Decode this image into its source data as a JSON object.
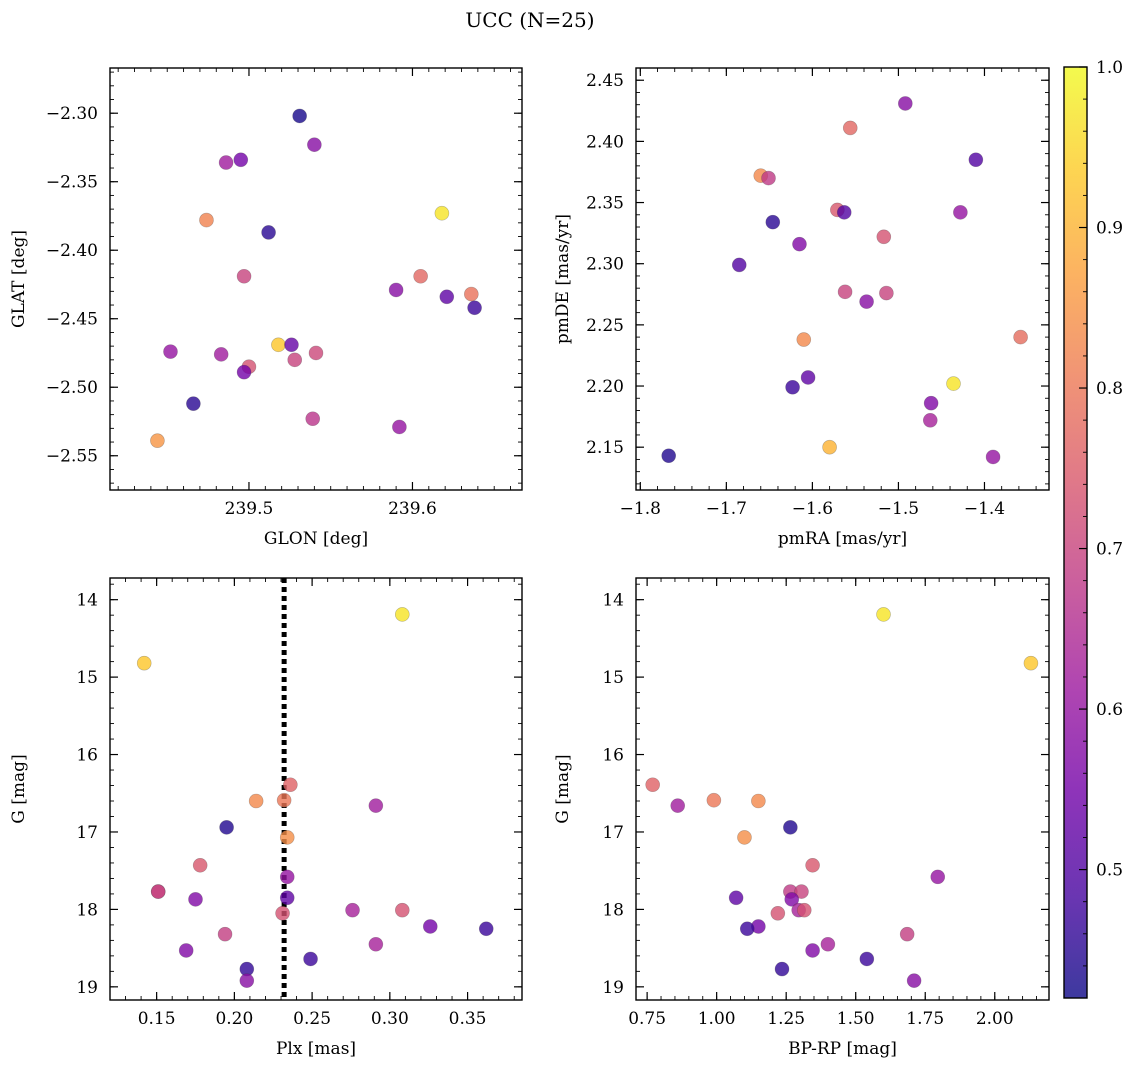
{
  "title": "UCC (N=25)",
  "colorbar": {
    "range": [
      0.42,
      1.0
    ],
    "ticks": [
      0.5,
      0.6,
      0.7,
      0.8,
      0.9,
      1.0
    ],
    "tick_labels": [
      "0.5",
      "0.6",
      "0.7",
      "0.8",
      "0.9",
      "1.0"
    ],
    "colormap": "plasma",
    "colormap_stops": [
      "#0d0887",
      "#46039f",
      "#7201a8",
      "#9c179e",
      "#bd3786",
      "#d8576b",
      "#ed7953",
      "#fb9f3a",
      "#fdca26",
      "#f0f921"
    ],
    "alpha": 0.8
  },
  "chart_data": [
    {
      "type": "scatter",
      "xlabel": "GLON [deg]",
      "ylabel": "GLAT [deg]",
      "xlim": [
        239.415,
        239.667
      ],
      "ylim": [
        -2.575,
        -2.267
      ],
      "xticks": [
        239.5,
        239.6
      ],
      "xtick_labels": [
        "239.5",
        "239.6"
      ],
      "yticks": [
        -2.3,
        -2.35,
        -2.4,
        -2.45,
        -2.5,
        -2.55
      ],
      "ytick_labels": [
        "−2.30",
        "−2.35",
        "−2.40",
        "−2.45",
        "−2.50",
        "−2.55"
      ],
      "x_minor_step": 0.01,
      "y_minor_step": 0.01,
      "invert_y": false,
      "points": [
        {
          "x": 239.531,
          "y": -2.302,
          "c": 0.43
        },
        {
          "x": 239.54,
          "y": -2.323,
          "c": 0.58
        },
        {
          "x": 239.486,
          "y": -2.336,
          "c": 0.62
        },
        {
          "x": 239.495,
          "y": -2.334,
          "c": 0.55
        },
        {
          "x": 239.618,
          "y": -2.373,
          "c": 0.97
        },
        {
          "x": 239.474,
          "y": -2.378,
          "c": 0.82
        },
        {
          "x": 239.512,
          "y": -2.387,
          "c": 0.45
        },
        {
          "x": 239.497,
          "y": -2.419,
          "c": 0.7
        },
        {
          "x": 239.605,
          "y": -2.419,
          "c": 0.77
        },
        {
          "x": 239.59,
          "y": -2.429,
          "c": 0.58
        },
        {
          "x": 239.621,
          "y": -2.434,
          "c": 0.52
        },
        {
          "x": 239.636,
          "y": -2.432,
          "c": 0.79
        },
        {
          "x": 239.638,
          "y": -2.442,
          "c": 0.47
        },
        {
          "x": 239.518,
          "y": -2.469,
          "c": 0.93
        },
        {
          "x": 239.526,
          "y": -2.469,
          "c": 0.53
        },
        {
          "x": 239.452,
          "y": -2.474,
          "c": 0.6
        },
        {
          "x": 239.483,
          "y": -2.476,
          "c": 0.62
        },
        {
          "x": 239.541,
          "y": -2.475,
          "c": 0.71
        },
        {
          "x": 239.528,
          "y": -2.48,
          "c": 0.7
        },
        {
          "x": 239.5,
          "y": -2.485,
          "c": 0.73
        },
        {
          "x": 239.497,
          "y": -2.489,
          "c": 0.55
        },
        {
          "x": 239.466,
          "y": -2.512,
          "c": 0.45
        },
        {
          "x": 239.539,
          "y": -2.523,
          "c": 0.67
        },
        {
          "x": 239.592,
          "y": -2.529,
          "c": 0.6
        },
        {
          "x": 239.444,
          "y": -2.539,
          "c": 0.85
        }
      ]
    },
    {
      "type": "scatter",
      "xlabel": "pmRA [mas/yr]",
      "ylabel": "pmDE [mas/yr]",
      "xlim": [
        -1.805,
        -1.325
      ],
      "ylim": [
        2.115,
        2.46
      ],
      "xticks": [
        -1.8,
        -1.7,
        -1.6,
        -1.5,
        -1.4
      ],
      "xtick_labels": [
        "−1.8",
        "−1.7",
        "−1.6",
        "−1.5",
        "−1.4"
      ],
      "yticks": [
        2.15,
        2.2,
        2.25,
        2.3,
        2.35,
        2.4,
        2.45
      ],
      "ytick_labels": [
        "2.15",
        "2.20",
        "2.25",
        "2.30",
        "2.35",
        "2.40",
        "2.45"
      ],
      "x_minor_step": 0.02,
      "y_minor_step": 0.01,
      "invert_y": false,
      "points": [
        {
          "x": -1.492,
          "y": 2.431,
          "c": 0.58
        },
        {
          "x": -1.556,
          "y": 2.411,
          "c": 0.77
        },
        {
          "x": -1.41,
          "y": 2.385,
          "c": 0.5
        },
        {
          "x": -1.66,
          "y": 2.372,
          "c": 0.83
        },
        {
          "x": -1.651,
          "y": 2.37,
          "c": 0.68
        },
        {
          "x": -1.571,
          "y": 2.344,
          "c": 0.74
        },
        {
          "x": -1.563,
          "y": 2.342,
          "c": 0.5
        },
        {
          "x": -1.428,
          "y": 2.342,
          "c": 0.6
        },
        {
          "x": -1.646,
          "y": 2.334,
          "c": 0.45
        },
        {
          "x": -1.517,
          "y": 2.322,
          "c": 0.73
        },
        {
          "x": -1.615,
          "y": 2.316,
          "c": 0.57
        },
        {
          "x": -1.685,
          "y": 2.299,
          "c": 0.5
        },
        {
          "x": -1.562,
          "y": 2.277,
          "c": 0.7
        },
        {
          "x": -1.514,
          "y": 2.276,
          "c": 0.7
        },
        {
          "x": -1.537,
          "y": 2.269,
          "c": 0.58
        },
        {
          "x": -1.358,
          "y": 2.24,
          "c": 0.78
        },
        {
          "x": -1.61,
          "y": 2.238,
          "c": 0.83
        },
        {
          "x": -1.436,
          "y": 2.202,
          "c": 0.97
        },
        {
          "x": -1.605,
          "y": 2.207,
          "c": 0.52
        },
        {
          "x": -1.623,
          "y": 2.199,
          "c": 0.47
        },
        {
          "x": -1.462,
          "y": 2.186,
          "c": 0.57
        },
        {
          "x": -1.463,
          "y": 2.172,
          "c": 0.63
        },
        {
          "x": -1.58,
          "y": 2.15,
          "c": 0.9
        },
        {
          "x": -1.39,
          "y": 2.142,
          "c": 0.6
        },
        {
          "x": -1.767,
          "y": 2.143,
          "c": 0.44
        }
      ]
    },
    {
      "type": "scatter",
      "xlabel": "Plx [mas]",
      "ylabel": "G [mag]",
      "xlim": [
        0.12,
        0.385
      ],
      "ylim": [
        19.17,
        13.72
      ],
      "xticks": [
        0.15,
        0.2,
        0.25,
        0.3,
        0.35
      ],
      "xtick_labels": [
        "0.15",
        "0.20",
        "0.25",
        "0.30",
        "0.35"
      ],
      "yticks": [
        14,
        15,
        16,
        17,
        18,
        19
      ],
      "ytick_labels": [
        "14",
        "15",
        "16",
        "17",
        "18",
        "19"
      ],
      "x_minor_step": 0.01,
      "y_minor_step": 0.2,
      "invert_y": true,
      "vline": {
        "x": 0.232,
        "style": "dotted"
      },
      "points": [
        {
          "x": 0.308,
          "y": 14.19,
          "c": 0.97
        },
        {
          "x": 0.142,
          "y": 14.82,
          "c": 0.93
        },
        {
          "x": 0.236,
          "y": 16.39,
          "c": 0.76
        },
        {
          "x": 0.214,
          "y": 16.6,
          "c": 0.83
        },
        {
          "x": 0.232,
          "y": 16.59,
          "c": 0.8
        },
        {
          "x": 0.291,
          "y": 16.66,
          "c": 0.62
        },
        {
          "x": 0.195,
          "y": 16.94,
          "c": 0.44
        },
        {
          "x": 0.234,
          "y": 17.07,
          "c": 0.84
        },
        {
          "x": 0.178,
          "y": 17.43,
          "c": 0.74
        },
        {
          "x": 0.234,
          "y": 17.58,
          "c": 0.6
        },
        {
          "x": 0.151,
          "y": 17.77,
          "c": 0.68
        },
        {
          "x": 0.151,
          "y": 17.77,
          "c": 0.7
        },
        {
          "x": 0.234,
          "y": 17.85,
          "c": 0.52
        },
        {
          "x": 0.175,
          "y": 17.87,
          "c": 0.57
        },
        {
          "x": 0.276,
          "y": 18.01,
          "c": 0.63
        },
        {
          "x": 0.308,
          "y": 18.01,
          "c": 0.73
        },
        {
          "x": 0.231,
          "y": 18.05,
          "c": 0.73
        },
        {
          "x": 0.326,
          "y": 18.22,
          "c": 0.55
        },
        {
          "x": 0.362,
          "y": 18.25,
          "c": 0.47
        },
        {
          "x": 0.194,
          "y": 18.32,
          "c": 0.69
        },
        {
          "x": 0.291,
          "y": 18.45,
          "c": 0.63
        },
        {
          "x": 0.169,
          "y": 18.53,
          "c": 0.57
        },
        {
          "x": 0.249,
          "y": 18.64,
          "c": 0.47
        },
        {
          "x": 0.208,
          "y": 18.77,
          "c": 0.46
        },
        {
          "x": 0.208,
          "y": 18.92,
          "c": 0.58
        }
      ]
    },
    {
      "type": "scatter",
      "xlabel": "BP-RP [mag]",
      "ylabel": "G [mag]",
      "xlim": [
        0.71,
        2.195
      ],
      "ylim": [
        19.17,
        13.72
      ],
      "xticks": [
        0.75,
        1.0,
        1.25,
        1.5,
        1.75,
        2.0
      ],
      "xtick_labels": [
        "0.75",
        "1.00",
        "1.25",
        "1.50",
        "1.75",
        "2.00"
      ],
      "yticks": [
        14,
        15,
        16,
        17,
        18,
        19
      ],
      "ytick_labels": [
        "14",
        "15",
        "16",
        "17",
        "18",
        "19"
      ],
      "x_minor_step": 0.05,
      "y_minor_step": 0.2,
      "invert_y": true,
      "points": [
        {
          "x": 1.6,
          "y": 14.19,
          "c": 0.97
        },
        {
          "x": 2.13,
          "y": 14.82,
          "c": 0.93
        },
        {
          "x": 0.77,
          "y": 16.39,
          "c": 0.76
        },
        {
          "x": 0.86,
          "y": 16.66,
          "c": 0.62
        },
        {
          "x": 0.99,
          "y": 16.59,
          "c": 0.8
        },
        {
          "x": 1.15,
          "y": 16.6,
          "c": 0.83
        },
        {
          "x": 1.265,
          "y": 16.94,
          "c": 0.44
        },
        {
          "x": 1.1,
          "y": 17.07,
          "c": 0.84
        },
        {
          "x": 1.345,
          "y": 17.43,
          "c": 0.74
        },
        {
          "x": 1.795,
          "y": 17.58,
          "c": 0.6
        },
        {
          "x": 1.265,
          "y": 17.77,
          "c": 0.68
        },
        {
          "x": 1.305,
          "y": 17.77,
          "c": 0.7
        },
        {
          "x": 1.07,
          "y": 17.85,
          "c": 0.52
        },
        {
          "x": 1.27,
          "y": 17.87,
          "c": 0.57
        },
        {
          "x": 1.295,
          "y": 18.01,
          "c": 0.63
        },
        {
          "x": 1.315,
          "y": 18.01,
          "c": 0.73
        },
        {
          "x": 1.22,
          "y": 18.05,
          "c": 0.73
        },
        {
          "x": 1.15,
          "y": 18.22,
          "c": 0.55
        },
        {
          "x": 1.11,
          "y": 18.25,
          "c": 0.47
        },
        {
          "x": 1.685,
          "y": 18.32,
          "c": 0.69
        },
        {
          "x": 1.4,
          "y": 18.45,
          "c": 0.63
        },
        {
          "x": 1.345,
          "y": 18.53,
          "c": 0.57
        },
        {
          "x": 1.54,
          "y": 18.64,
          "c": 0.47
        },
        {
          "x": 1.235,
          "y": 18.77,
          "c": 0.46
        },
        {
          "x": 1.71,
          "y": 18.92,
          "c": 0.58
        }
      ]
    }
  ]
}
